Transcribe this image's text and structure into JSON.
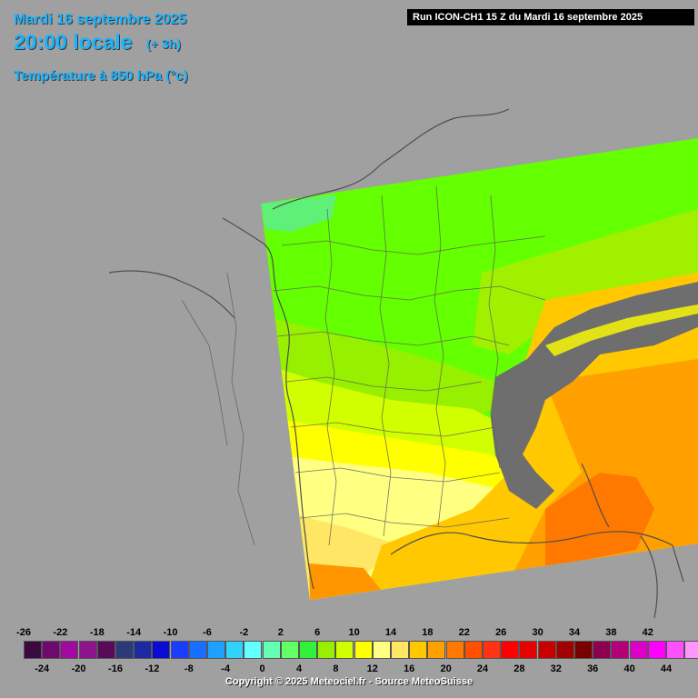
{
  "header": {
    "date": "Mardi 16 septembre 2025",
    "time": "20:00 locale",
    "offset": "(+ 3h)",
    "parameter": "Température à 850 hPa (°c)"
  },
  "run_label": "Run ICON-CH1 15 Z du Mardi 16 septembre 2025",
  "legend": {
    "top_labels": [
      "-26",
      "-22",
      "-18",
      "-14",
      "-10",
      "-6",
      "-2",
      "2",
      "6",
      "10",
      "14",
      "18",
      "22",
      "26",
      "30",
      "34",
      "38",
      "42"
    ],
    "bottom_labels": [
      "-24",
      "-20",
      "-16",
      "-12",
      "-8",
      "-4",
      "0",
      "4",
      "8",
      "12",
      "16",
      "20",
      "24",
      "28",
      "32",
      "36",
      "40",
      "44"
    ],
    "colors": [
      "#3a0a3e",
      "#6e0a6e",
      "#a00aa0",
      "#8c148c",
      "#5a0a5a",
      "#2a3a7a",
      "#1c2aa0",
      "#0a0ad2",
      "#1a3cff",
      "#1a6eff",
      "#1ea0ff",
      "#32d2ff",
      "#64ffff",
      "#64ffb4",
      "#64ff64",
      "#32f03c",
      "#96f000",
      "#d2ff00",
      "#ffff00",
      "#ffff82",
      "#ffe664",
      "#ffc800",
      "#ffa000",
      "#ff7800",
      "#ff5000",
      "#ff3214",
      "#ff0000",
      "#e60000",
      "#c80000",
      "#a00000",
      "#780000",
      "#8c0050",
      "#b40078",
      "#dc00c8",
      "#ff00ff",
      "#ff50ff",
      "#ff96ff"
    ]
  },
  "copyright": "Copyright © 2025 Meteociel.fr - Source MeteoSuisse"
}
